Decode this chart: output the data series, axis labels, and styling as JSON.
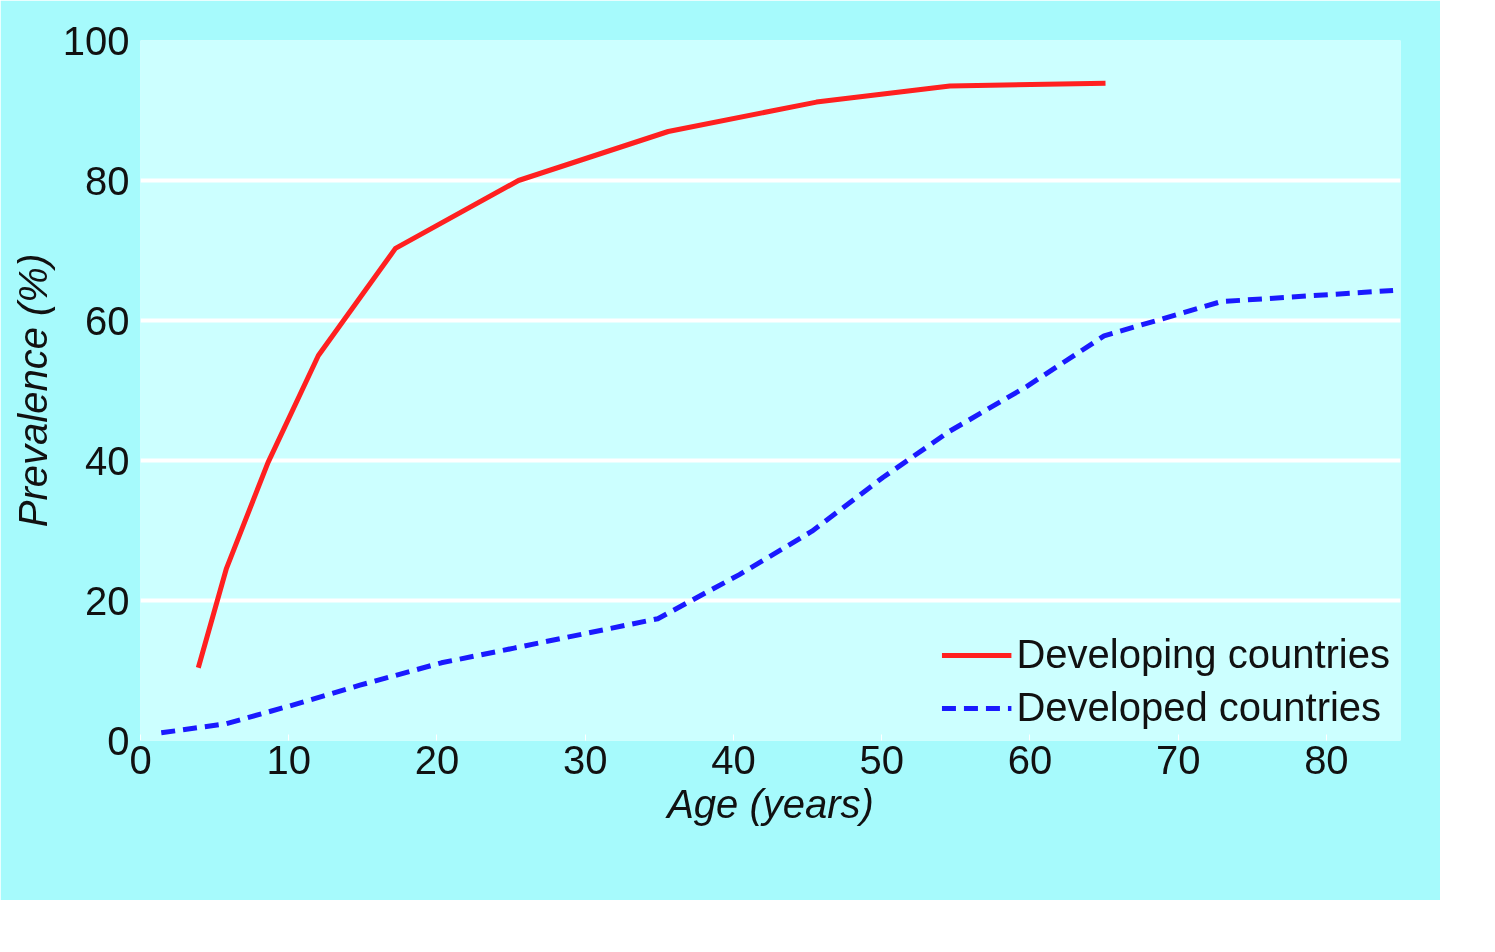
{
  "chart_data": {
    "type": "line",
    "xlabel": "Age (years)",
    "ylabel": "Prevalence (%)",
    "xlim": [
      0,
      85
    ],
    "xticks": [
      0,
      10,
      20,
      30,
      40,
      50,
      60,
      70,
      80
    ],
    "ylim": [
      0,
      100
    ],
    "yticks": [
      0,
      20,
      40,
      60,
      80,
      100
    ],
    "grid": "y",
    "legend": "bottom right",
    "series": [
      {
        "name": "Developing countries",
        "color": "#ff2020",
        "line_style": "solid",
        "x": [
          3.9,
          5.8,
          8.6,
          12.0,
          17.2,
          25.5,
          35.6,
          45.6,
          54.6,
          65.1
        ],
        "values": [
          10.4,
          24.6,
          39.7,
          55,
          70.3,
          80,
          87,
          91.2,
          93.5,
          93.9
        ]
      },
      {
        "name": "Developed countries",
        "color": "#1a1aff",
        "line_style": "dashed",
        "x": [
          1.4,
          5.8,
          10,
          14.8,
          20.3,
          25.2,
          34.9,
          40.4,
          45.3,
          50.1,
          54.6,
          59.8,
          65,
          72.9,
          84.5
        ],
        "values": [
          1.1,
          2.4,
          4.9,
          7.9,
          11.1,
          13.2,
          17.4,
          23.7,
          29.9,
          37.6,
          44.2,
          50.6,
          57.8,
          62.7,
          64.3
        ]
      }
    ]
  }
}
